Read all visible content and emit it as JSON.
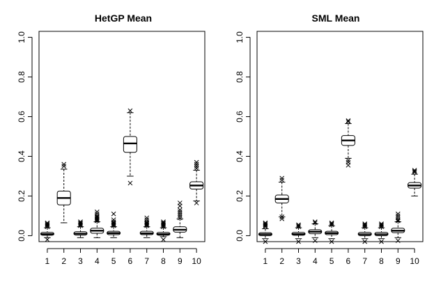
{
  "chart_data": [
    {
      "type": "boxplot",
      "title": "HetGP Mean",
      "xlabel": "",
      "ylabel": "",
      "ylim": [
        -0.03,
        1.03
      ],
      "y_ticks": [
        0.0,
        0.2,
        0.4,
        0.6,
        0.8,
        1.0
      ],
      "y_tick_labels": [
        "0.0",
        "0.2",
        "0.4",
        "0.6",
        "0.8",
        "1.0"
      ],
      "categories": [
        "1",
        "2",
        "3",
        "4",
        "5",
        "6",
        "7",
        "8",
        "9",
        "10"
      ],
      "boxes": [
        {
          "category": "1",
          "whisker_low": -0.01,
          "q1": 0.002,
          "median": 0.008,
          "q3": 0.017,
          "whisker_high": 0.04,
          "outliers": [
            0.045,
            0.05,
            0.055,
            0.06,
            0.065,
            -0.02
          ]
        },
        {
          "category": "2",
          "whisker_low": 0.065,
          "q1": 0.155,
          "median": 0.19,
          "q3": 0.225,
          "whisker_high": 0.335,
          "outliers": [
            0.35,
            0.36
          ]
        },
        {
          "category": "3",
          "whisker_low": -0.01,
          "q1": 0.003,
          "median": 0.01,
          "q3": 0.02,
          "whisker_high": 0.045,
          "outliers": [
            0.05,
            0.055,
            0.06,
            0.065,
            0.07
          ]
        },
        {
          "category": "4",
          "whisker_low": -0.01,
          "q1": 0.012,
          "median": 0.025,
          "q3": 0.038,
          "whisker_high": 0.07,
          "outliers": [
            0.075,
            0.08,
            0.085,
            0.09,
            0.095,
            0.1,
            0.11,
            0.12
          ]
        },
        {
          "category": "5",
          "whisker_low": -0.01,
          "q1": 0.005,
          "median": 0.013,
          "q3": 0.022,
          "whisker_high": 0.045,
          "outliers": [
            0.05,
            0.055,
            0.06,
            0.065,
            0.07,
            0.08,
            0.11
          ]
        },
        {
          "category": "6",
          "whisker_low": 0.3,
          "q1": 0.42,
          "median": 0.465,
          "q3": 0.5,
          "whisker_high": 0.62,
          "outliers": [
            0.63,
            0.265
          ]
        },
        {
          "category": "7",
          "whisker_low": -0.01,
          "q1": 0.005,
          "median": 0.012,
          "q3": 0.022,
          "whisker_high": 0.045,
          "outliers": [
            0.05,
            0.055,
            0.06,
            0.065,
            0.07,
            0.08,
            0.09
          ]
        },
        {
          "category": "8",
          "whisker_low": -0.005,
          "q1": 0.002,
          "median": 0.008,
          "q3": 0.017,
          "whisker_high": 0.04,
          "outliers": [
            0.045,
            0.05,
            0.055,
            0.06,
            0.065,
            0.07,
            -0.02
          ]
        },
        {
          "category": "9",
          "whisker_low": -0.01,
          "q1": 0.018,
          "median": 0.03,
          "q3": 0.045,
          "whisker_high": 0.085,
          "outliers": [
            0.09,
            0.1,
            0.11,
            0.12,
            0.13,
            0.15,
            0.165
          ]
        },
        {
          "category": "10",
          "whisker_low": 0.175,
          "q1": 0.235,
          "median": 0.253,
          "q3": 0.272,
          "whisker_high": 0.33,
          "outliers": [
            0.34,
            0.35,
            0.36,
            0.37,
            0.165
          ]
        }
      ]
    },
    {
      "type": "boxplot",
      "title": "SML Mean",
      "xlabel": "",
      "ylabel": "",
      "ylim": [
        -0.03,
        1.03
      ],
      "y_ticks": [
        0.0,
        0.2,
        0.4,
        0.6,
        0.8,
        1.0
      ],
      "y_tick_labels": [
        "0.0",
        "0.2",
        "0.4",
        "0.6",
        "0.8",
        "1.0"
      ],
      "categories": [
        "1",
        "2",
        "3",
        "4",
        "5",
        "6",
        "7",
        "8",
        "9",
        "10"
      ],
      "boxes": [
        {
          "category": "1",
          "whisker_low": -0.015,
          "q1": 0.0,
          "median": 0.007,
          "q3": 0.015,
          "whisker_high": 0.035,
          "outliers": [
            0.045,
            0.05,
            0.055,
            0.06,
            0.065,
            -0.03
          ]
        },
        {
          "category": "2",
          "whisker_low": 0.095,
          "q1": 0.165,
          "median": 0.185,
          "q3": 0.205,
          "whisker_high": 0.27,
          "outliers": [
            0.28,
            0.29,
            0.085,
            0.095
          ]
        },
        {
          "category": "3",
          "whisker_low": -0.015,
          "q1": 0.002,
          "median": 0.008,
          "q3": 0.017,
          "whisker_high": 0.04,
          "outliers": [
            0.045,
            0.05,
            0.055,
            -0.03
          ]
        },
        {
          "category": "4",
          "whisker_low": -0.01,
          "q1": 0.01,
          "median": 0.02,
          "q3": 0.03,
          "whisker_high": 0.06,
          "outliers": [
            0.065,
            0.07,
            -0.025
          ]
        },
        {
          "category": "5",
          "whisker_low": -0.015,
          "q1": 0.005,
          "median": 0.013,
          "q3": 0.022,
          "whisker_high": 0.05,
          "outliers": [
            0.055,
            0.06,
            0.065,
            -0.03
          ]
        },
        {
          "category": "6",
          "whisker_low": 0.39,
          "q1": 0.455,
          "median": 0.48,
          "q3": 0.505,
          "whisker_high": 0.565,
          "outliers": [
            0.575,
            0.58,
            0.38,
            0.37,
            0.355
          ]
        },
        {
          "category": "7",
          "whisker_low": -0.015,
          "q1": 0.0,
          "median": 0.007,
          "q3": 0.017,
          "whisker_high": 0.04,
          "outliers": [
            0.045,
            0.05,
            0.055,
            0.06,
            -0.03
          ]
        },
        {
          "category": "8",
          "whisker_low": -0.015,
          "q1": 0.0,
          "median": 0.007,
          "q3": 0.017,
          "whisker_high": 0.04,
          "outliers": [
            0.045,
            0.05,
            0.055,
            0.06,
            -0.03
          ]
        },
        {
          "category": "9",
          "whisker_low": -0.01,
          "q1": 0.015,
          "median": 0.025,
          "q3": 0.038,
          "whisker_high": 0.07,
          "outliers": [
            0.075,
            0.08,
            0.09,
            0.1,
            0.11,
            -0.025
          ]
        },
        {
          "category": "10",
          "whisker_low": 0.2,
          "q1": 0.24,
          "median": 0.253,
          "q3": 0.268,
          "whisker_high": 0.31,
          "outliers": [
            0.32,
            0.325,
            0.33
          ]
        }
      ]
    }
  ]
}
